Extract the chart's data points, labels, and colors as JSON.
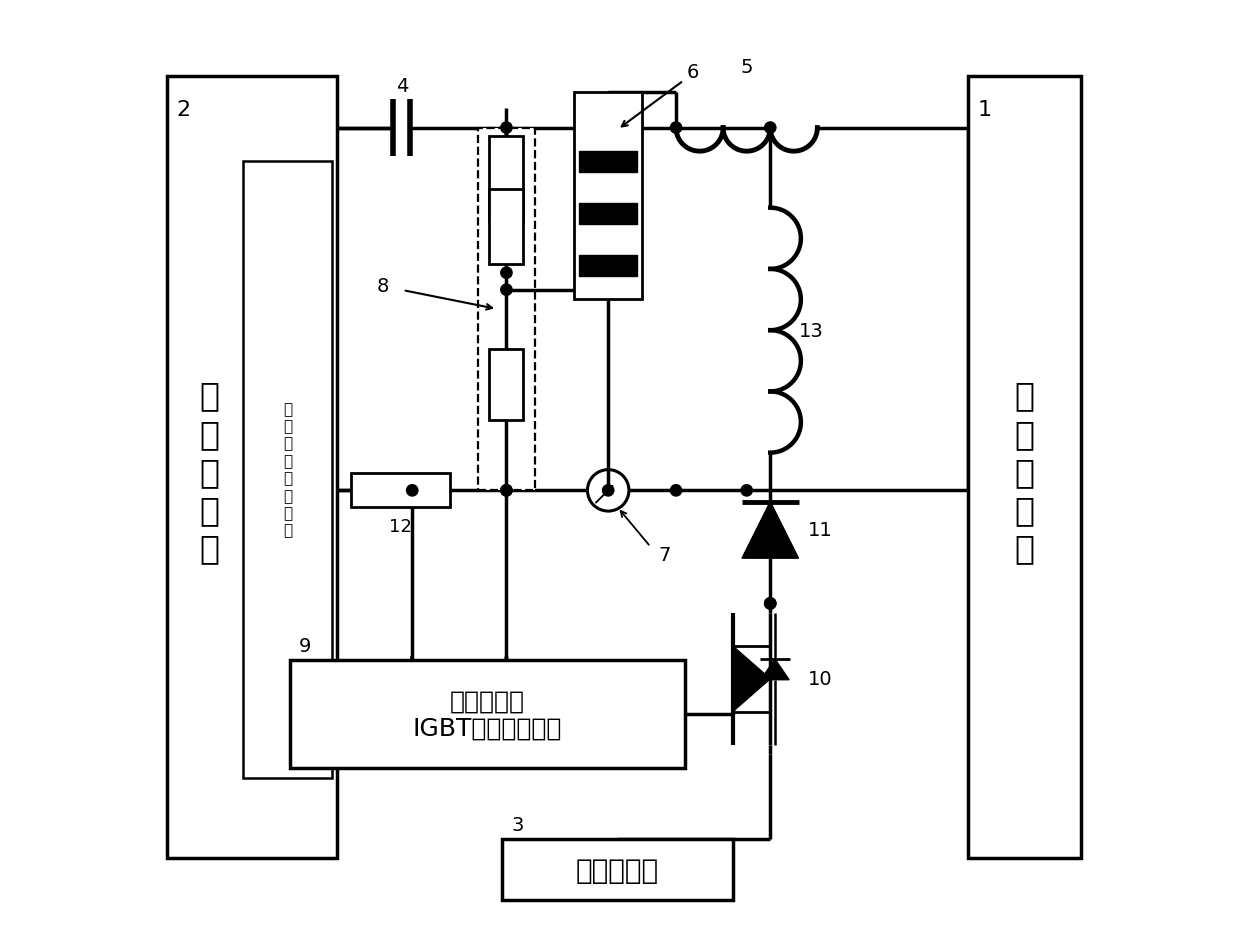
{
  "bg": "#ffffff",
  "fw": 12.39,
  "fh": 9.45,
  "lw": 2.5,
  "texts": {
    "box1_num": "1",
    "box1_label": "高压直流源",
    "box2_num": "2",
    "box2_label": "高压脉冲源",
    "inner_label": "脉冲输出形成电路",
    "box9_label": "信号检测及\nIGBT触发控制单元",
    "box3_label": "低压直流源",
    "n1": "1",
    "n2": "2",
    "n3": "3",
    "n4": "4",
    "n5": "5",
    "n6": "6",
    "n7": "7",
    "n8": "8",
    "n9": "9",
    "n10": "10",
    "n11": "11",
    "n12": "12",
    "n13": "13"
  }
}
